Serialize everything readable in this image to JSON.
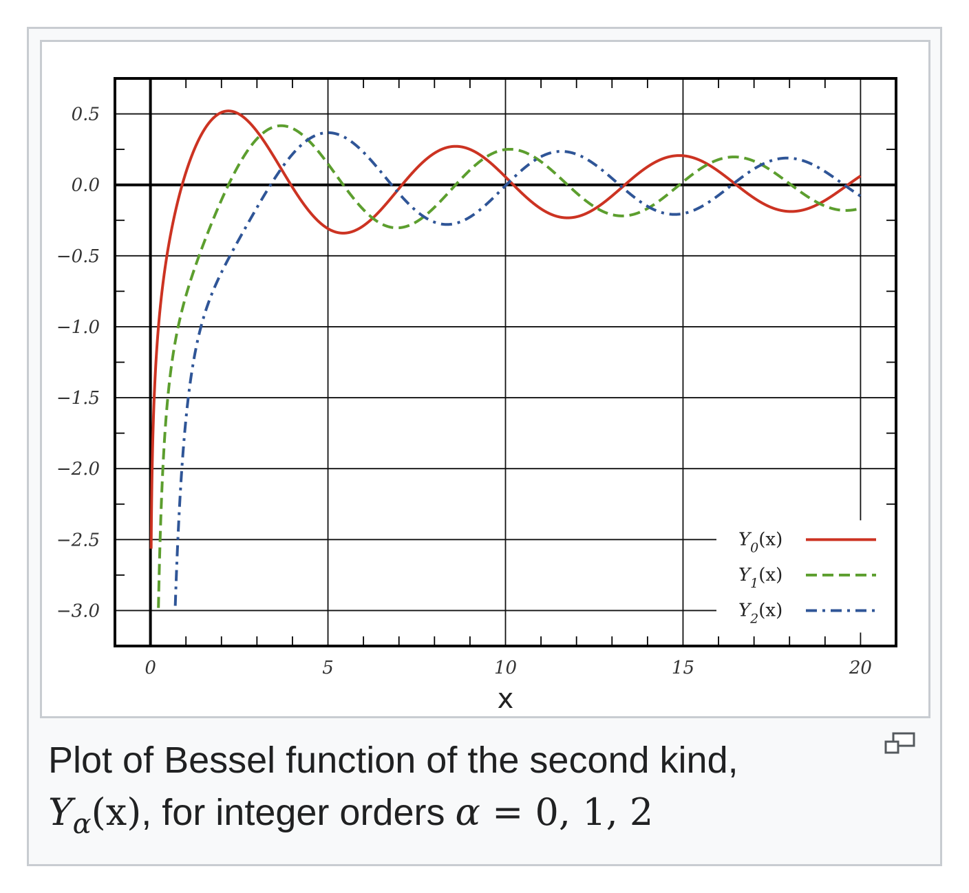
{
  "figure": {
    "caption_text": "Plot of Bessel function of the second kind,",
    "caption_math": "Yα(x)",
    "caption_math_symbol": "Y",
    "caption_math_subscript": "α",
    "caption_math_arg": "(x)",
    "caption_mid": ", for integer orders ",
    "caption_alpha": "α",
    "caption_equals": " = 0, 1, 2",
    "magnify_icon": "enlarge-icon"
  },
  "chart_data": {
    "type": "line",
    "title": "",
    "xlabel": "x",
    "ylabel": "",
    "xlim": [
      -1,
      21
    ],
    "ylim": [
      -3.25,
      0.75
    ],
    "x_ticks": [
      0,
      5,
      10,
      15,
      20
    ],
    "x_tick_labels": [
      "0",
      "5",
      "10",
      "15",
      "20"
    ],
    "y_ticks": [
      0.5,
      0.0,
      -0.5,
      -1.0,
      -1.5,
      -2.0,
      -2.5,
      -3.0
    ],
    "y_tick_labels": [
      "0.5",
      "0.0",
      "−0.5",
      "−1.0",
      "−1.5",
      "−2.0",
      "−2.5",
      "−3.0"
    ],
    "grid": true,
    "legend_position": "bottom-right",
    "series": [
      {
        "name": "Y0(x)",
        "symbol": "Y",
        "sub": "0",
        "arg": "(x)",
        "order": 0,
        "color": "#cc3322",
        "style": "solid"
      },
      {
        "name": "Y1(x)",
        "symbol": "Y",
        "sub": "1",
        "arg": "(x)",
        "order": 1,
        "color": "#5c9e2e",
        "style": "dashed"
      },
      {
        "name": "Y2(x)",
        "symbol": "Y",
        "sub": "2",
        "arg": "(x)",
        "order": 2,
        "color": "#2f5597",
        "style": "dashdot"
      }
    ],
    "x_range": [
      0.0,
      20.0
    ],
    "y_clip_min": -3.0
  }
}
